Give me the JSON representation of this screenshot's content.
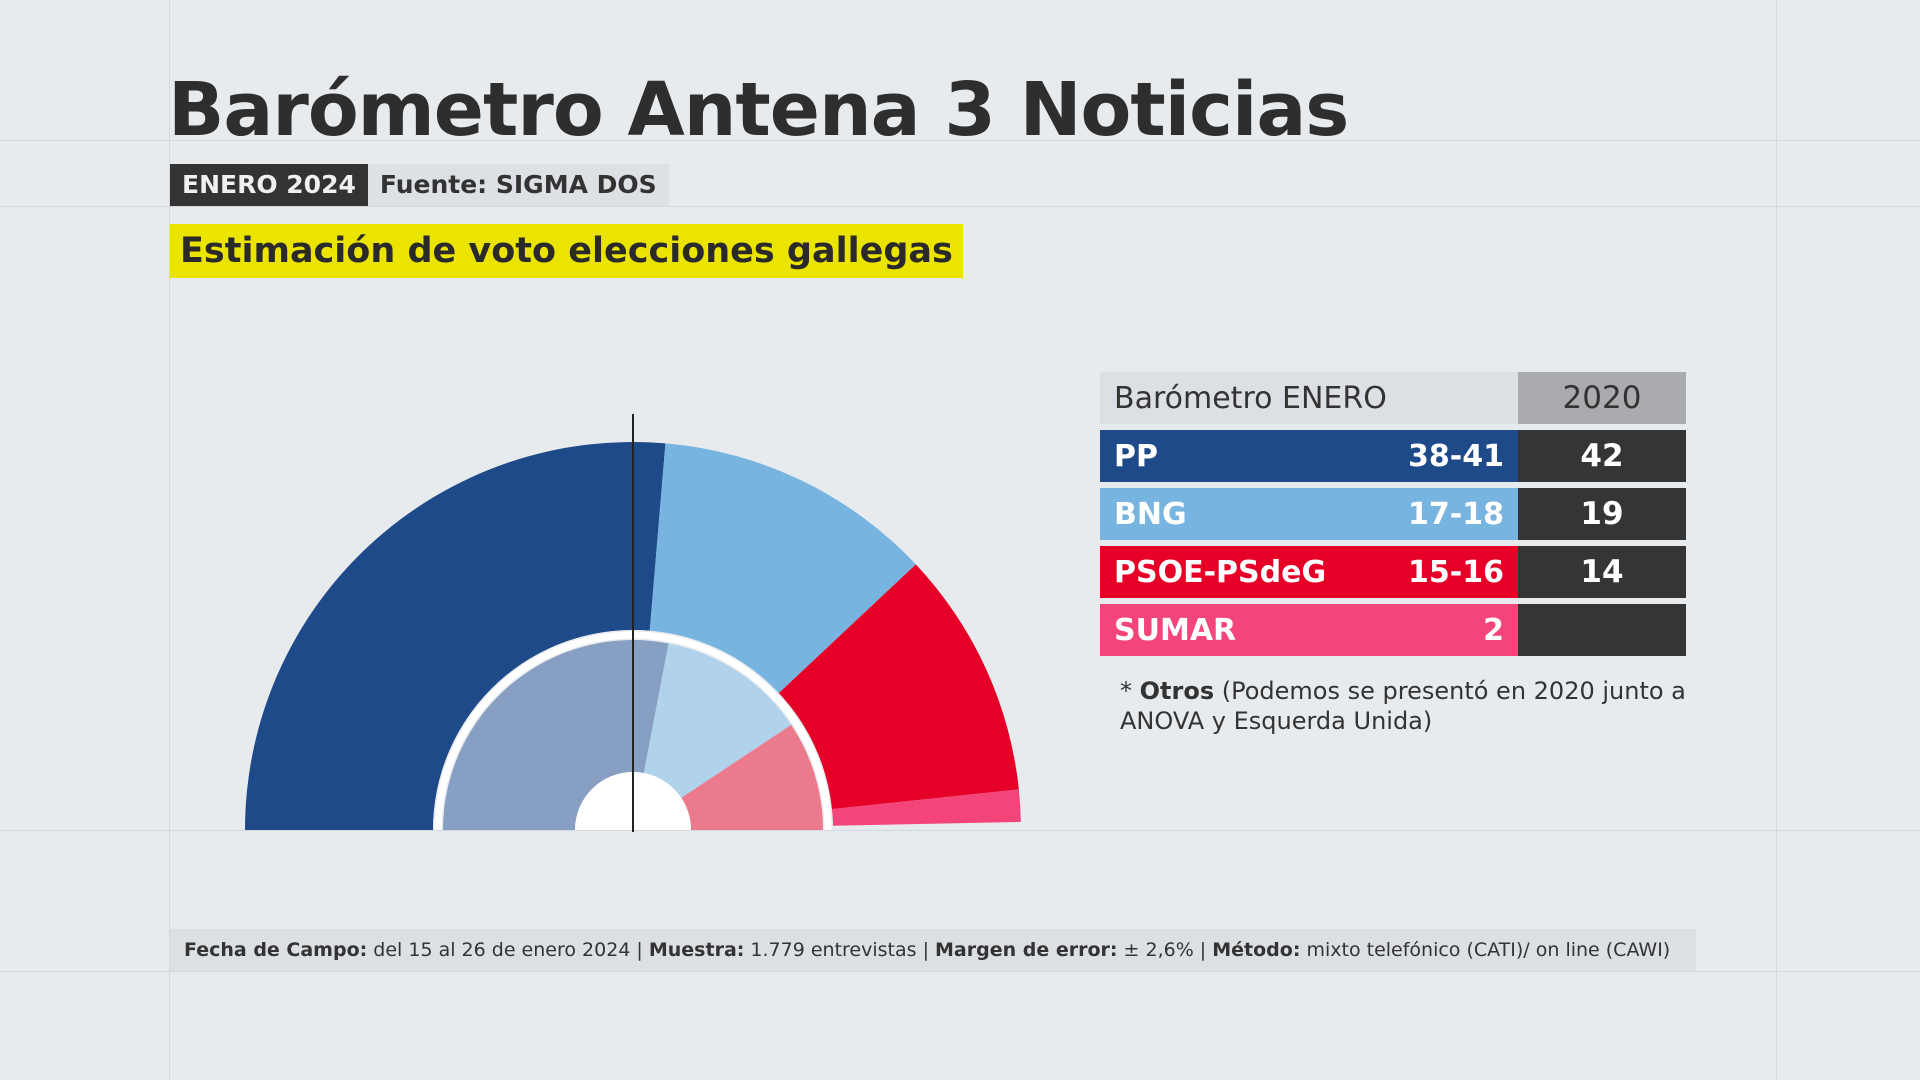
{
  "header": {
    "title": "Barómetro Antena 3 Noticias",
    "date_badge": "ENERO 2024",
    "source": "Fuente: SIGMA DOS",
    "subtitle": "Estimación de voto elecciones gallegas"
  },
  "colors": {
    "background": "#e8ebee",
    "pp": "#1f4a8a",
    "bng": "#78b4e0",
    "psoe": "#e60028",
    "sumar": "#f4457a",
    "pp_2020": "#869fc3",
    "bng_2020": "#b0d2ea",
    "psoe_2020": "#ea7a8c",
    "highlight": "#ebe400",
    "dark": "#353535"
  },
  "chart_data": {
    "type": "hemicycle",
    "total_seats": 75,
    "majority_line": true,
    "outer_ring": {
      "label": "Barómetro ENERO",
      "series": [
        {
          "name": "PP",
          "value": 39.5,
          "color": "#1f4a8a"
        },
        {
          "name": "BNG",
          "value": 17.5,
          "color": "#78b4e0"
        },
        {
          "name": "PSOE-PSdeG",
          "value": 15.5,
          "color": "#e60028"
        },
        {
          "name": "SUMAR",
          "value": 2,
          "color": "#f4457a"
        }
      ]
    },
    "inner_ring": {
      "label": "2020",
      "series": [
        {
          "name": "PP",
          "value": 42,
          "color": "#869fc3"
        },
        {
          "name": "BNG",
          "value": 19,
          "color": "#b0d2ea"
        },
        {
          "name": "PSOE-PSdeG",
          "value": 14,
          "color": "#ea7a8c"
        }
      ]
    }
  },
  "table": {
    "header": {
      "current": "Barómetro ENERO",
      "previous": "2020"
    },
    "rows": [
      {
        "party": "PP",
        "estimate": "38-41",
        "previous": "42",
        "color": "#1f4a8a"
      },
      {
        "party": "BNG",
        "estimate": "17-18",
        "previous": "19",
        "color": "#78b4e0"
      },
      {
        "party": "PSOE-PSdeG",
        "estimate": "15-16",
        "previous": "14",
        "color": "#e60028"
      },
      {
        "party": "SUMAR",
        "estimate": "2",
        "previous": "",
        "color": "#f4457a"
      }
    ]
  },
  "note": {
    "prefix": "* ",
    "bold": "Otros",
    "text": " (Podemos se presentó en 2020 junto a ANOVA y Esquerda Unida)"
  },
  "footer": {
    "fecha_label": "Fecha de Campo:",
    "fecha_value": " del 15 al 26 de enero 2024 | ",
    "muestra_label": "Muestra:",
    "muestra_value": " 1.779 entrevistas | ",
    "margen_label": "Margen de error:",
    "margen_value": " ± 2,6% | ",
    "metodo_label": "Método:",
    "metodo_value": " mixto telefónico (CATI)/ on line (CAWI)"
  }
}
